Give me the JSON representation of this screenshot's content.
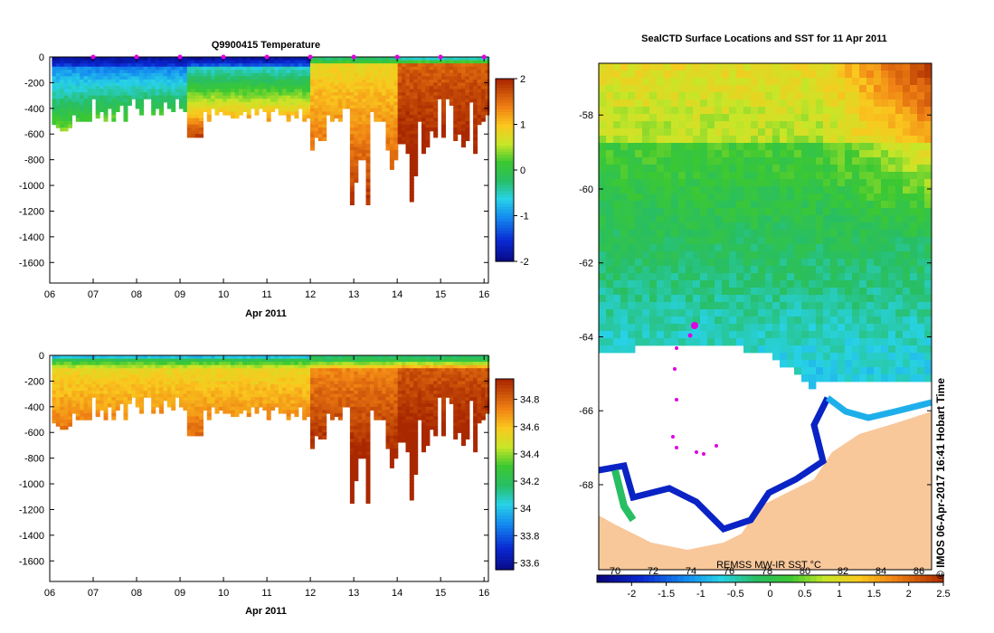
{
  "colors": {
    "ocean_fill": "#ffffff",
    "land": "#f8c79a",
    "station_marker": "#e000e0"
  },
  "chart_data": [
    {
      "type": "heatmap",
      "name": "temperature-section",
      "title": "Q9900415  Temperature",
      "xlabel": "Apr 2011",
      "x_ticks": [
        "06",
        "07",
        "08",
        "09",
        "10",
        "11",
        "12",
        "13",
        "14",
        "15",
        "16"
      ],
      "x_range": [
        6,
        16.1
      ],
      "y_ticks": [
        "0",
        "-200",
        "-400",
        "-600",
        "-800",
        "-1000",
        "-1200",
        "-1400",
        "-1600"
      ],
      "y_range": [
        0,
        -1760
      ],
      "colorbar_ticks": [
        "2",
        "1",
        "0",
        "-1",
        "-2"
      ],
      "colorbar_range": [
        -2,
        2
      ],
      "surface_markers_days": [
        7,
        8,
        9,
        10,
        11,
        12,
        13,
        14,
        15,
        16
      ]
    },
    {
      "type": "heatmap",
      "name": "salinity-section",
      "title": "",
      "xlabel": "Apr 2011",
      "x_ticks": [
        "06",
        "07",
        "08",
        "09",
        "10",
        "11",
        "12",
        "13",
        "14",
        "15",
        "16"
      ],
      "x_range": [
        6,
        16.1
      ],
      "y_ticks": [
        "0",
        "-200",
        "-400",
        "-600",
        "-800",
        "-1000",
        "-1200",
        "-1400",
        "-1600"
      ],
      "y_range": [
        0,
        -1760
      ],
      "colorbar_ticks": [
        "34.8",
        "34.6",
        "34.4",
        "34.2",
        "34",
        "33.8",
        "33.6"
      ],
      "colorbar_range": [
        33.55,
        34.95
      ]
    },
    {
      "type": "heatmap",
      "name": "sst-map",
      "title": "SealCTD Surface Locations and SST for 11 Apr 2011",
      "y_ticks": [
        "-58",
        "-60",
        "-62",
        "-64",
        "-66",
        "-68"
      ],
      "lat_range": [
        -56.6,
        -70.3
      ],
      "colorbar_label": "REMSS MW-IR SST °C",
      "colorbar_ticks": [
        "-2",
        "-1.5",
        "-1",
        "-0.5",
        "0",
        "0.5",
        "1",
        "1.5",
        "2",
        "2.5"
      ],
      "colorbar_range": [
        -2.5,
        2.5
      ],
      "colorbar_secondary_ticks": [
        "70",
        "72",
        "74",
        "76",
        "78",
        "80",
        "82",
        "84",
        "86"
      ],
      "credit": "© IMOS 06-Apr-2017 16:41 Hobart Time"
    }
  ]
}
